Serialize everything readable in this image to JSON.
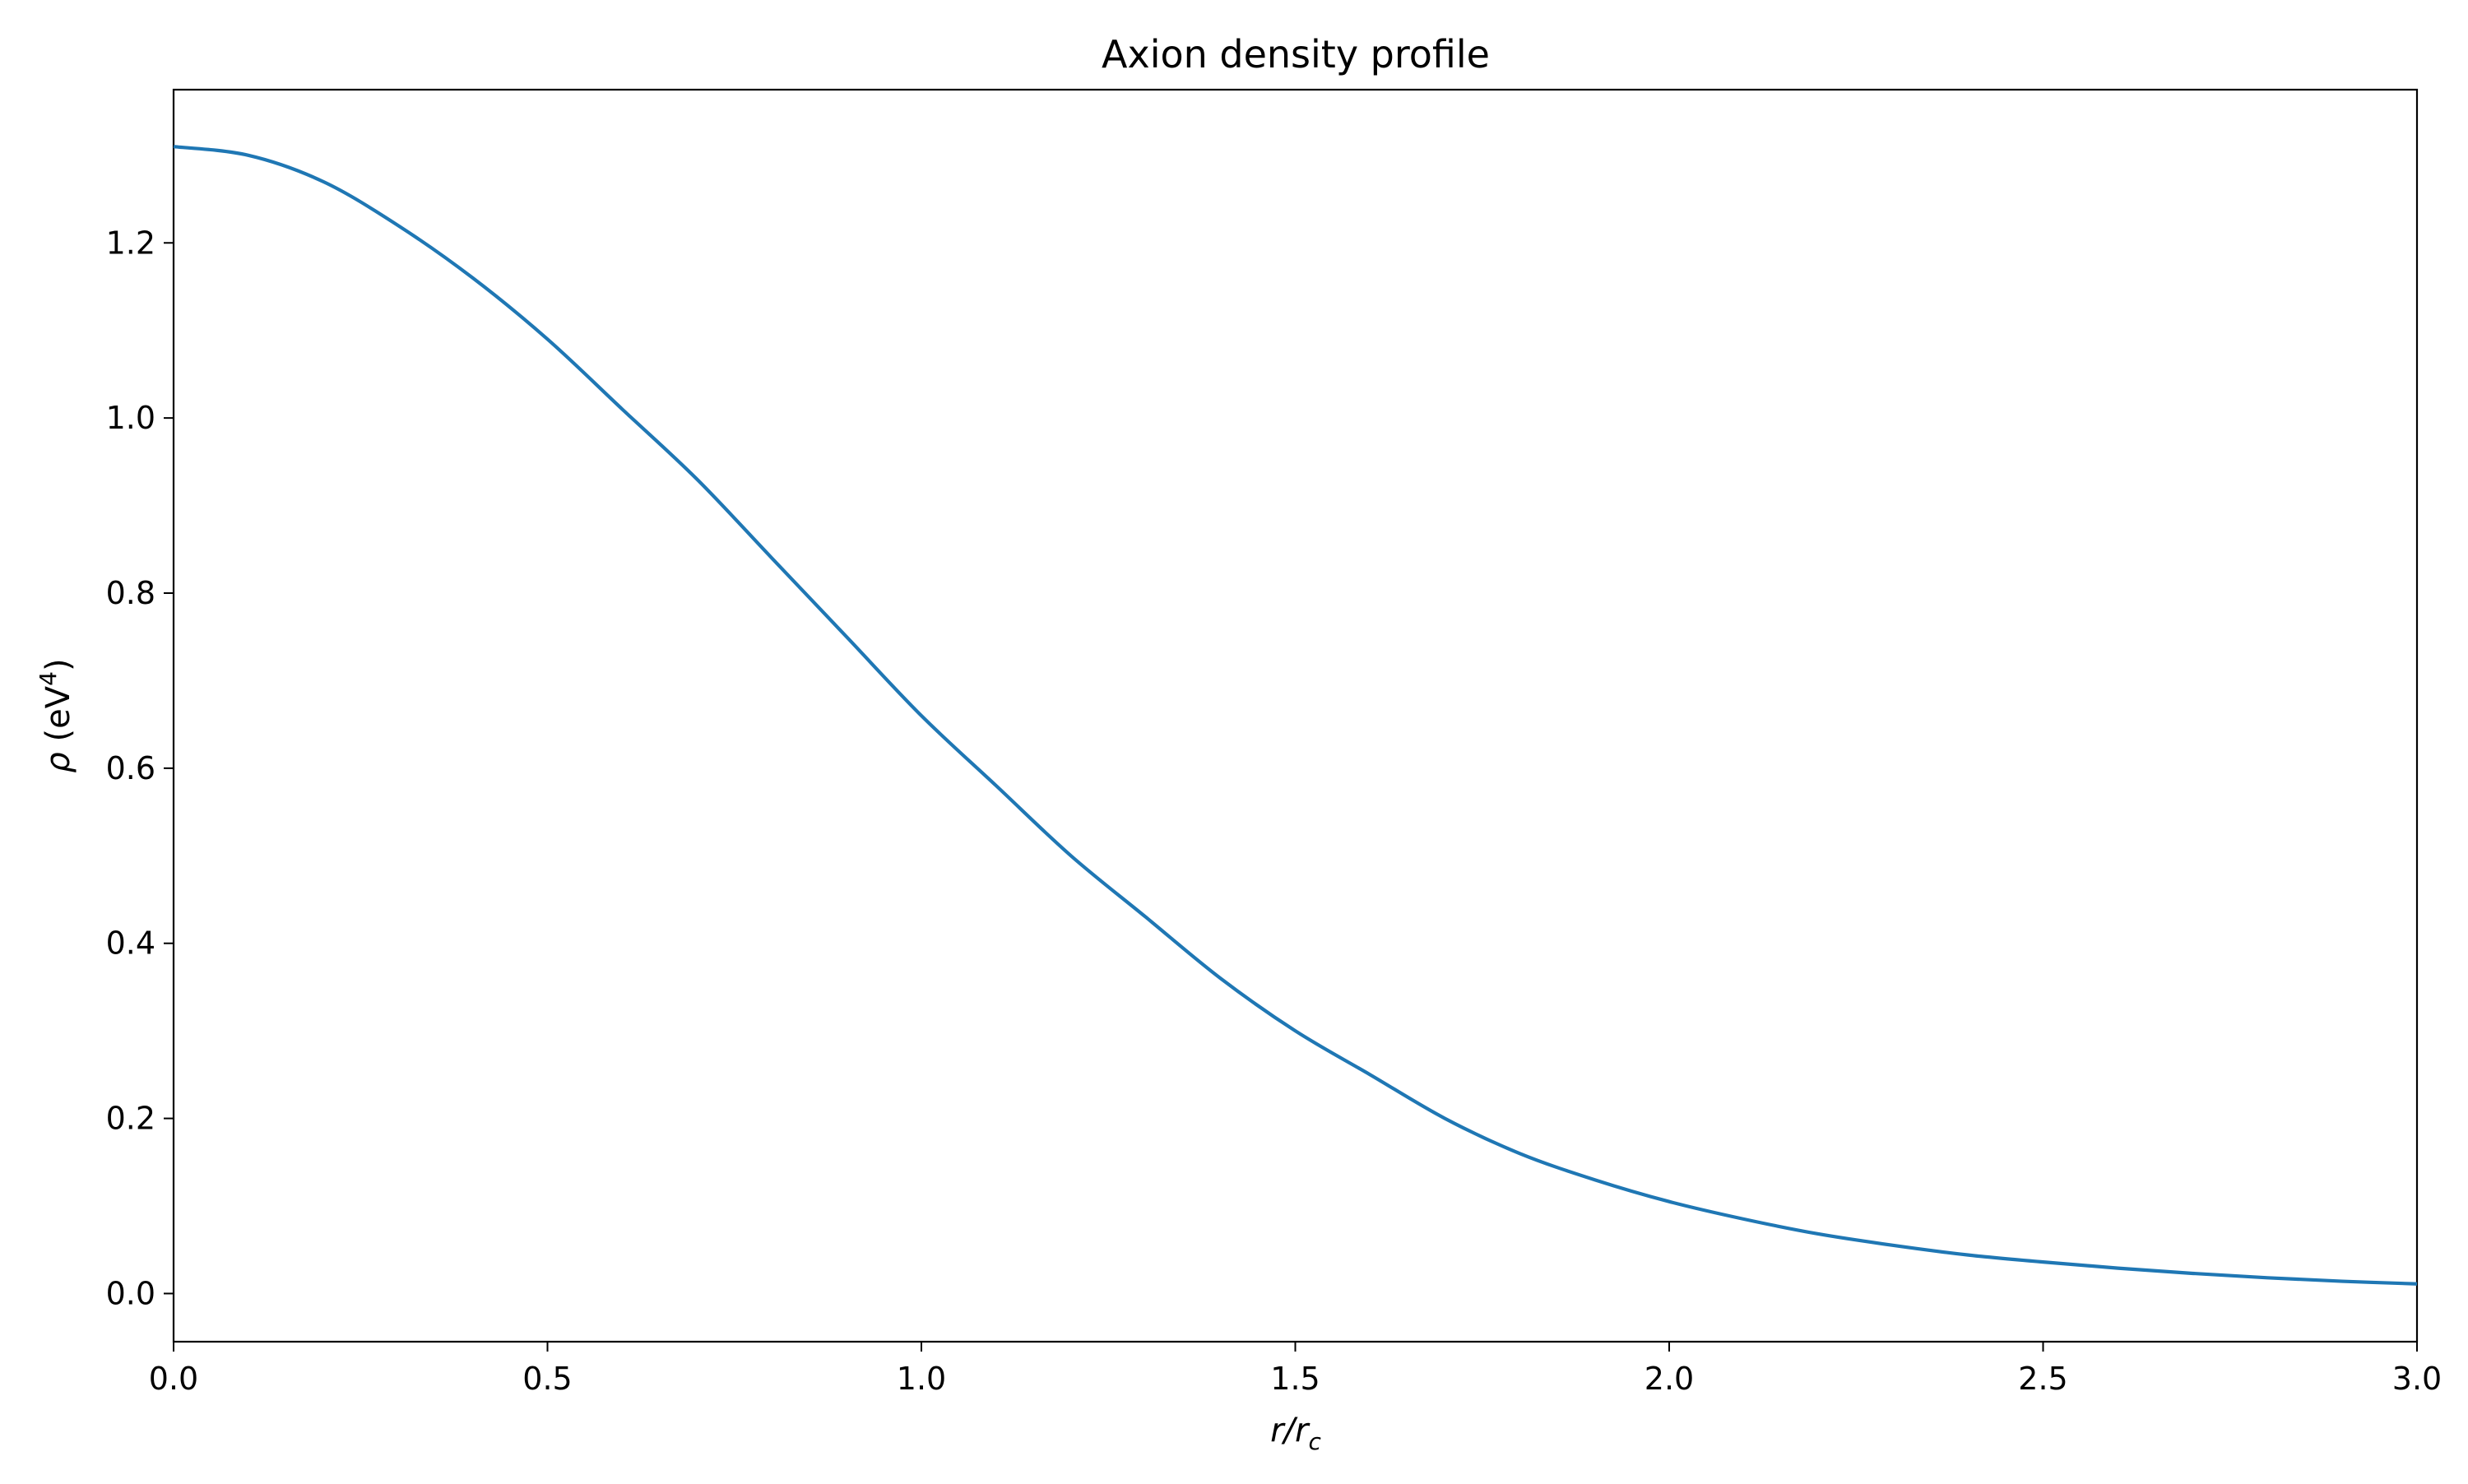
{
  "chart_data": {
    "type": "line",
    "title": "Axion density profile",
    "xlabel": {
      "main": "r/r",
      "sub": "c"
    },
    "ylabel": {
      "symbol": "ρ",
      "unit_open": " (eV",
      "unit_sup": "4",
      "unit_close": ")"
    },
    "xlim": [
      0.0,
      3.0
    ],
    "ylim": [
      -0.055,
      1.375
    ],
    "xticks": [
      0.0,
      0.5,
      1.0,
      1.5,
      2.0,
      2.5,
      3.0
    ],
    "xtick_labels": [
      "0.0",
      "0.5",
      "1.0",
      "1.5",
      "2.0",
      "2.5",
      "3.0"
    ],
    "yticks": [
      0.0,
      0.2,
      0.4,
      0.6,
      0.8,
      1.0,
      1.2
    ],
    "ytick_labels": [
      "0.0",
      "0.2",
      "0.4",
      "0.6",
      "0.8",
      "1.0",
      "1.2"
    ],
    "grid": false,
    "legend": "none",
    "line_color": "#1f77b4",
    "series": [
      {
        "x": [
          0.0,
          0.1,
          0.2,
          0.3,
          0.4,
          0.5,
          0.6,
          0.7,
          0.8,
          0.9,
          1.0,
          1.1,
          1.2,
          1.3,
          1.4,
          1.5,
          1.6,
          1.7,
          1.8,
          1.9,
          2.0,
          2.1,
          2.2,
          2.3,
          2.4,
          2.5,
          2.6,
          2.7,
          2.8,
          2.9,
          3.0
        ],
        "y": [
          1.31,
          1.3,
          1.27,
          1.22,
          1.16,
          1.09,
          1.01,
          0.93,
          0.84,
          0.75,
          0.66,
          0.58,
          0.5,
          0.43,
          0.36,
          0.3,
          0.25,
          0.2,
          0.16,
          0.13,
          0.105,
          0.085,
          0.068,
          0.055,
          0.044,
          0.036,
          0.029,
          0.023,
          0.018,
          0.014,
          0.011
        ]
      }
    ]
  }
}
